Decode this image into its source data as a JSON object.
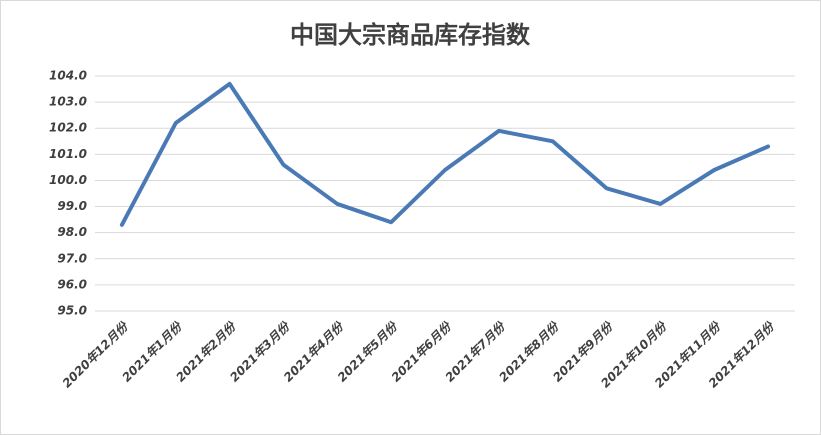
{
  "chart_data": {
    "type": "line",
    "title": "中国大宗商品库存指数",
    "categories": [
      "2020年12月份",
      "2021年1月份",
      "2021年2月份",
      "2021年3月份",
      "2021年4月份",
      "2021年5月份",
      "2021年6月份",
      "2021年7月份",
      "2021年8月份",
      "2021年9月份",
      "2021年10月份",
      "2021年11月份",
      "2021年12月份"
    ],
    "series": [
      {
        "color": "#4a7ab5",
        "values": [
          98.3,
          102.2,
          103.7,
          100.6,
          99.1,
          98.4,
          100.4,
          101.9,
          101.5,
          99.7,
          99.1,
          100.4,
          101.3
        ]
      }
    ],
    "ylim": [
      95,
      104
    ],
    "yticks": [
      {
        "value": 95,
        "label": "95.0"
      },
      {
        "value": 96,
        "label": "96.0"
      },
      {
        "value": 97,
        "label": "97.0"
      },
      {
        "value": 98,
        "label": "98.0"
      },
      {
        "value": 99,
        "label": "99.0"
      },
      {
        "value": 100,
        "label": "100.0"
      },
      {
        "value": 101,
        "label": "101.0"
      },
      {
        "value": 102,
        "label": "102.0"
      },
      {
        "value": 103,
        "label": "103.0"
      },
      {
        "value": 104,
        "label": "104.0"
      }
    ],
    "grid": true
  }
}
